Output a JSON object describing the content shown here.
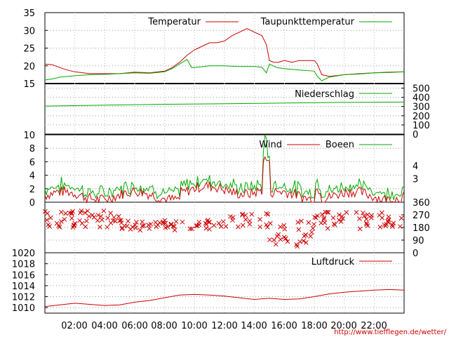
{
  "credit": "http://www.tiefflegen.de/wetter/",
  "time_labels": [
    "02:00",
    "04:00",
    "06:00",
    "08:00",
    "10:00",
    "12:00",
    "14:00",
    "16:00",
    "18:00",
    "20:00",
    "22:00"
  ],
  "chart_data": [
    {
      "type": "line",
      "id": "temp",
      "ylim": [
        15,
        35
      ],
      "yticks": [
        "15",
        "20",
        "25",
        "30",
        "35"
      ],
      "series": [
        {
          "name": "Temperatur",
          "color": "#cc0000",
          "x": [
            0,
            0.5,
            1,
            1.5,
            2,
            3,
            4,
            5,
            6,
            7,
            8,
            8.5,
            9,
            9.5,
            10,
            10.5,
            11,
            11.5,
            12,
            12.5,
            13,
            13.5,
            14,
            14.5,
            14.8,
            15,
            15.3,
            15.6,
            16,
            16.5,
            17,
            17.5,
            18,
            18.2,
            18.5,
            19,
            20,
            21,
            22,
            23,
            24
          ],
          "y": [
            20.5,
            20.3,
            19.5,
            18.8,
            18.3,
            17.8,
            17.8,
            17.8,
            18.2,
            18.0,
            18.5,
            19.5,
            21.0,
            23.0,
            24.5,
            25.5,
            26.5,
            26.5,
            27.0,
            28.5,
            29.5,
            30.5,
            29.5,
            28.5,
            26.0,
            21.5,
            21.0,
            21.0,
            21.5,
            21.0,
            21.5,
            21.5,
            21.5,
            20.5,
            17.5,
            17.0,
            17.5,
            17.8,
            18.0,
            18.2,
            18.3
          ]
        },
        {
          "name": "Taupunkttemperatur",
          "color": "#00aa00",
          "x": [
            0,
            0.5,
            1,
            1.5,
            2,
            3,
            4,
            5,
            6,
            7,
            8,
            8.5,
            9,
            9.5,
            9.8,
            10,
            11,
            12,
            13,
            14,
            14.5,
            14.8,
            15,
            15.5,
            16,
            17,
            18,
            18.2,
            18.5,
            19,
            20,
            21,
            22,
            23,
            24
          ],
          "y": [
            16.0,
            16.3,
            16.8,
            17.0,
            17.2,
            17.5,
            17.6,
            17.8,
            18.0,
            17.9,
            18.3,
            19.2,
            20.5,
            21.8,
            19.5,
            19.5,
            20.0,
            20.0,
            19.8,
            19.8,
            19.6,
            18.0,
            20.5,
            19.5,
            19.2,
            18.8,
            18.5,
            17.0,
            15.8,
            16.8,
            17.5,
            17.7,
            18.0,
            18.1,
            18.3
          ]
        }
      ]
    },
    {
      "type": "line",
      "id": "rain",
      "ylim": [
        0,
        550
      ],
      "yticks": [
        "0",
        "100",
        "200",
        "300",
        "400",
        "500"
      ],
      "series": [
        {
          "name": "Niederschlag",
          "color": "#00aa00",
          "x": [
            0,
            4,
            8,
            12,
            16,
            20,
            24
          ],
          "y": [
            305,
            315,
            325,
            330,
            338,
            345,
            348
          ]
        }
      ]
    },
    {
      "type": "line",
      "id": "wind",
      "ylim": [
        0,
        10
      ],
      "yticks": [
        "0",
        "2",
        "4",
        "6",
        "8",
        "10"
      ],
      "right_ticks": [
        "3",
        "4"
      ],
      "series": [
        {
          "name": "Wind",
          "color": "#cc0000"
        },
        {
          "name": "Boeen",
          "color": "#00aa00"
        }
      ]
    },
    {
      "type": "scatter",
      "id": "direction",
      "ylim": [
        0,
        360
      ],
      "yticks": [
        "0",
        "90",
        "180",
        "270",
        "360"
      ],
      "series": [
        {
          "name": "",
          "color": "#cc0000"
        }
      ]
    },
    {
      "type": "line",
      "id": "pressure",
      "ylim": [
        1009,
        1020
      ],
      "yticks": [
        "1010",
        "1012",
        "1014",
        "1016",
        "1018",
        "1020"
      ],
      "series": [
        {
          "name": "Luftdruck",
          "color": "#cc0000",
          "x": [
            0,
            1,
            2,
            3,
            4,
            5,
            6,
            7,
            8,
            9,
            10,
            11,
            12,
            13,
            14,
            15,
            16,
            17,
            18,
            19,
            20,
            21,
            22,
            23,
            24
          ],
          "y": [
            1010.2,
            1010.5,
            1010.8,
            1010.6,
            1010.4,
            1010.5,
            1011.0,
            1011.3,
            1011.8,
            1012.3,
            1012.4,
            1012.3,
            1012.1,
            1011.8,
            1011.5,
            1011.7,
            1011.5,
            1011.6,
            1012.0,
            1012.5,
            1012.8,
            1013.0,
            1013.2,
            1013.3,
            1013.2
          ]
        }
      ]
    }
  ]
}
